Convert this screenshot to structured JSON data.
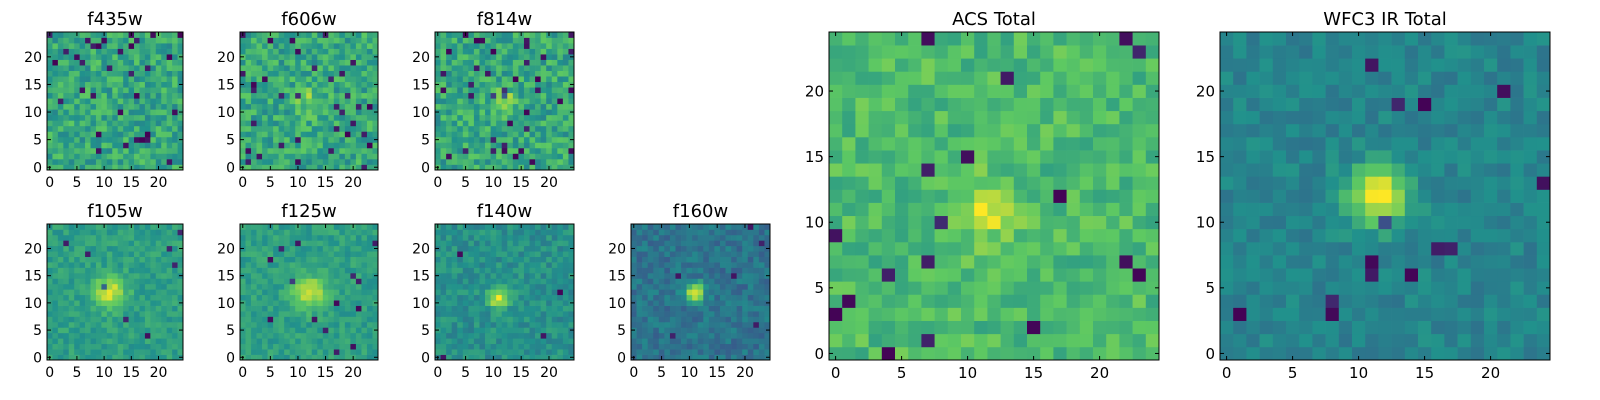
{
  "figure": {
    "background": "#ffffff",
    "colormap": "viridis",
    "colormap_stops": [
      "#440154",
      "#3b528b",
      "#21918c",
      "#5ec962",
      "#fde725"
    ]
  },
  "chart_data": [
    {
      "type": "heatmap",
      "title": "f435w",
      "grid_size": 25,
      "xlim": [
        -0.5,
        24.5
      ],
      "ylim": [
        -0.5,
        24.5
      ],
      "xticks": [
        0,
        5,
        10,
        15,
        20
      ],
      "yticks": [
        0,
        5,
        10,
        15,
        20
      ],
      "background_level": 0.6,
      "noise": 0.15,
      "low_outliers": 0.05,
      "source": null
    },
    {
      "type": "heatmap",
      "title": "f606w",
      "grid_size": 25,
      "xlim": [
        -0.5,
        24.5
      ],
      "ylim": [
        -0.5,
        24.5
      ],
      "xticks": [
        0,
        5,
        10,
        15,
        20
      ],
      "yticks": [
        0,
        5,
        10,
        15,
        20
      ],
      "background_level": 0.6,
      "noise": 0.15,
      "low_outliers": 0.05,
      "source": {
        "x": 12,
        "y": 12,
        "sigma": 1.8,
        "peak": 0.18
      }
    },
    {
      "type": "heatmap",
      "title": "f814w",
      "grid_size": 25,
      "xlim": [
        -0.5,
        24.5
      ],
      "ylim": [
        -0.5,
        24.5
      ],
      "xticks": [
        0,
        5,
        10,
        15,
        20
      ],
      "yticks": [
        0,
        5,
        10,
        15,
        20
      ],
      "background_level": 0.6,
      "noise": 0.15,
      "low_outliers": 0.05,
      "source": {
        "x": 12,
        "y": 12,
        "sigma": 1.5,
        "peak": 0.25
      }
    },
    {
      "type": "heatmap",
      "title": "f105w",
      "grid_size": 25,
      "xlim": [
        -0.5,
        24.5
      ],
      "ylim": [
        -0.5,
        24.5
      ],
      "xticks": [
        0,
        5,
        10,
        15,
        20
      ],
      "yticks": [
        0,
        5,
        10,
        15,
        20
      ],
      "background_level": 0.56,
      "noise": 0.08,
      "low_outliers": 0.01,
      "source": {
        "x": 11,
        "y": 12,
        "sigma": 2.0,
        "peak": 0.4
      }
    },
    {
      "type": "heatmap",
      "title": "f125w",
      "grid_size": 25,
      "xlim": [
        -0.5,
        24.5
      ],
      "ylim": [
        -0.5,
        24.5
      ],
      "xticks": [
        0,
        5,
        10,
        15,
        20
      ],
      "yticks": [
        0,
        5,
        10,
        15,
        20
      ],
      "background_level": 0.56,
      "noise": 0.08,
      "low_outliers": 0.02,
      "source": {
        "x": 12,
        "y": 12,
        "sigma": 2.0,
        "peak": 0.4
      }
    },
    {
      "type": "heatmap",
      "title": "f140w",
      "grid_size": 25,
      "xlim": [
        -0.5,
        24.5
      ],
      "ylim": [
        -0.5,
        24.5
      ],
      "xticks": [
        0,
        5,
        10,
        15,
        20
      ],
      "yticks": [
        0,
        5,
        10,
        15,
        20
      ],
      "background_level": 0.5,
      "noise": 0.09,
      "low_outliers": 0.01,
      "source": {
        "x": 11,
        "y": 11,
        "sigma": 1.3,
        "peak": 0.5
      }
    },
    {
      "type": "heatmap",
      "title": "f160w",
      "grid_size": 25,
      "xlim": [
        -0.5,
        24.5
      ],
      "ylim": [
        -0.5,
        24.5
      ],
      "xticks": [
        0,
        5,
        10,
        15,
        20
      ],
      "yticks": [
        0,
        5,
        10,
        15,
        20
      ],
      "background_level": 0.38,
      "noise": 0.09,
      "low_outliers": 0.01,
      "source": {
        "x": 11,
        "y": 12,
        "sigma": 1.2,
        "peak": 0.6
      }
    },
    {
      "type": "heatmap",
      "title": "ACS Total",
      "grid_size": 25,
      "xlim": [
        -0.5,
        24.5
      ],
      "ylim": [
        -0.5,
        24.5
      ],
      "xticks": [
        0,
        5,
        10,
        15,
        20
      ],
      "yticks": [
        0,
        5,
        10,
        15,
        20
      ],
      "background_level": 0.68,
      "noise": 0.11,
      "low_outliers": 0.03,
      "source": {
        "x": 11.5,
        "y": 11,
        "sigma": 1.5,
        "peak": 0.28
      }
    },
    {
      "type": "heatmap",
      "title": "WFC3 IR Total",
      "grid_size": 25,
      "xlim": [
        -0.5,
        24.5
      ],
      "ylim": [
        -0.5,
        24.5
      ],
      "xticks": [
        0,
        5,
        10,
        15,
        20
      ],
      "yticks": [
        0,
        5,
        10,
        15,
        20
      ],
      "background_level": 0.45,
      "noise": 0.07,
      "low_outliers": 0.015,
      "source": {
        "x": 11.5,
        "y": 12,
        "sigma": 1.6,
        "peak": 0.55
      }
    }
  ]
}
